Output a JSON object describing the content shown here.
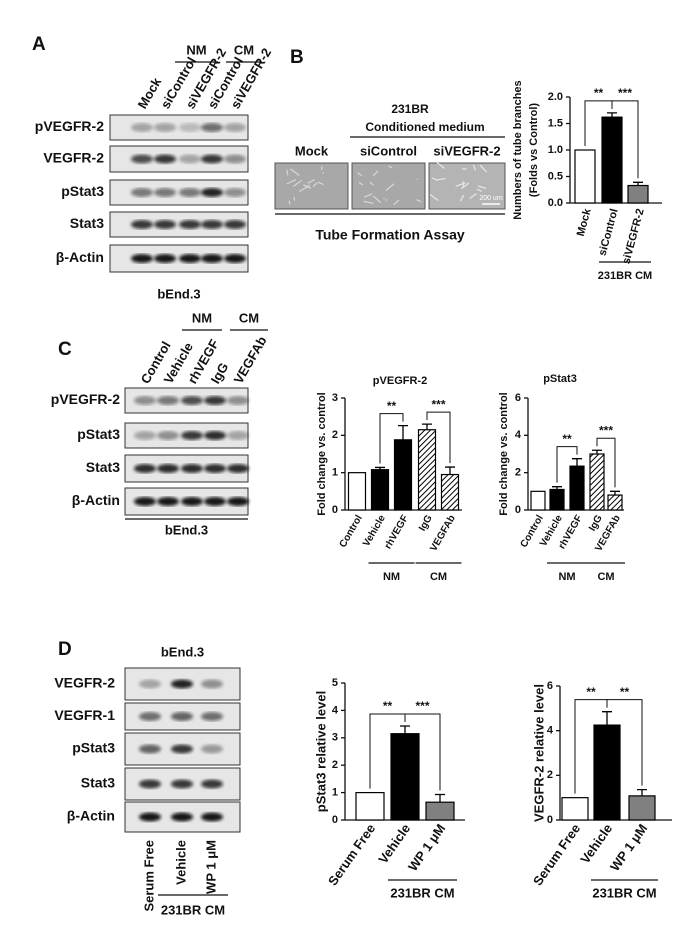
{
  "figure": {
    "panel_labels": [
      "A",
      "B",
      "C",
      "D"
    ],
    "blot_A": {
      "groups": [
        "NM",
        "CM"
      ],
      "lanes": [
        "Mock",
        "siControl",
        "siVEGFR-2",
        "siControl",
        "siVEGFR-2"
      ],
      "rows": [
        "pVEGFR-2",
        "VEGFR-2",
        "pStat3",
        "Stat3",
        "β-Actin"
      ],
      "cell_line": "bEnd.3"
    },
    "tube_B": {
      "title": "231BR",
      "subtitle": "Conditioned medium",
      "images": [
        "Mock",
        "siControl",
        "siVEGFR-2"
      ],
      "scale_bar": "200 um",
      "caption": "Tube Formation Assay"
    },
    "blot_C": {
      "groups": [
        "NM",
        "CM"
      ],
      "lanes": [
        "Control",
        "Vehicle",
        "rhVEGF",
        "IgG",
        "VEGFAb"
      ],
      "rows": [
        "pVEGFR-2",
        "pStat3",
        "Stat3",
        "β-Actin"
      ],
      "cell_line": "bEnd.3"
    },
    "blot_D": {
      "groups": [
        "231BR CM"
      ],
      "lanes": [
        "Serum Free",
        "Vehicle",
        "WP 1 μM"
      ],
      "rows": [
        "VEGFR-2",
        "VEGFR-1",
        "pStat3",
        "Stat3",
        "β-Actin"
      ],
      "cell_line": "bEnd.3"
    }
  },
  "chart_data": [
    {
      "type": "bar",
      "ylabel": [
        "Numbers of tube branches",
        "(Folds vs Control)"
      ],
      "categories": [
        "Mock",
        "siControl",
        "siVEGFR-2"
      ],
      "values": [
        1.0,
        1.62,
        0.33
      ],
      "errors": [
        0,
        0.08,
        0.06
      ],
      "fills": [
        "#ffffff",
        "#000000",
        "#808080"
      ],
      "ylim": [
        0,
        2
      ],
      "yticks": [
        {
          "value": 0,
          "label": "0.0"
        },
        {
          "value": 0.5,
          "label": "0.5"
        },
        {
          "value": 1,
          "label": "1.0"
        },
        {
          "value": 1.5,
          "label": "1.5"
        },
        {
          "value": 2,
          "label": "2.0"
        }
      ],
      "annotations": [
        "**",
        "***"
      ],
      "groups": [
        "231BR CM"
      ]
    },
    {
      "type": "bar",
      "title": "pVEGFR-2",
      "ylabel": [
        "Fold change vs. control"
      ],
      "categories": [
        "Control",
        "Vehicle",
        "rhVEGF",
        "IgG",
        "VEGFAb"
      ],
      "values": [
        1.0,
        1.08,
        1.88,
        2.15,
        0.95
      ],
      "errors": [
        0,
        0.06,
        0.38,
        0.15,
        0.2
      ],
      "fills": [
        "#ffffff",
        "#000000",
        "#000000",
        "hatch",
        "hatch"
      ],
      "ylim": [
        0,
        3
      ],
      "yticks": [
        0,
        1,
        2,
        3
      ],
      "annotations": [
        "**",
        "***"
      ],
      "groups": [
        "NM",
        "CM"
      ]
    },
    {
      "type": "bar",
      "title": "pStat3",
      "ylabel": [
        "Fold change vs. control"
      ],
      "categories": [
        "Control",
        "Vehicle",
        "rhVEGF",
        "IgG",
        "VEGFAb"
      ],
      "values": [
        1.0,
        1.1,
        2.35,
        3.0,
        0.8
      ],
      "errors": [
        0,
        0.15,
        0.4,
        0.2,
        0.2
      ],
      "fills": [
        "#ffffff",
        "#000000",
        "#000000",
        "hatch",
        "hatch"
      ],
      "ylim": [
        0,
        6
      ],
      "yticks": [
        0,
        2,
        4,
        6
      ],
      "annotations": [
        "**",
        "***"
      ],
      "groups": [
        "NM",
        "CM"
      ]
    },
    {
      "type": "bar",
      "ylabel": [
        "pStat3 relative level"
      ],
      "categories": [
        "Serum Free",
        "Vehicle",
        "WP 1 μM"
      ],
      "values": [
        1.0,
        3.15,
        0.65
      ],
      "errors": [
        0,
        0.28,
        0.28
      ],
      "fills": [
        "#ffffff",
        "#000000",
        "#808080"
      ],
      "ylim": [
        0,
        5
      ],
      "yticks": [
        0,
        1,
        2,
        3,
        4,
        5
      ],
      "annotations": [
        "**",
        "***"
      ],
      "groups": [
        "231BR CM"
      ]
    },
    {
      "type": "bar",
      "ylabel": [
        "VEGFR-2 relative level"
      ],
      "categories": [
        "Serum Free",
        "Vehicle",
        "WP 1 μM"
      ],
      "values": [
        1.0,
        4.25,
        1.08
      ],
      "errors": [
        0,
        0.6,
        0.28
      ],
      "fills": [
        "#ffffff",
        "#000000",
        "#808080"
      ],
      "ylim": [
        0,
        6
      ],
      "yticks": [
        0,
        2,
        4,
        6
      ],
      "annotations": [
        "**",
        "**"
      ],
      "groups": [
        "231BR CM"
      ]
    }
  ]
}
